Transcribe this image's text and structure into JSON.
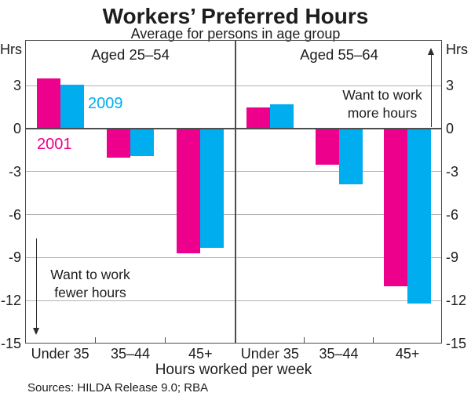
{
  "header": {
    "title": "Workers’ Preferred Hours",
    "subtitle": "Average for persons in age group"
  },
  "chart_data": {
    "type": "bar",
    "unit_label": "Hrs",
    "ylim": [
      -15,
      6.2
    ],
    "yticks": [
      3,
      0,
      -3,
      -6,
      -9,
      -12,
      -15
    ],
    "gridline_values": [
      3,
      -3,
      -6,
      -9,
      -12
    ],
    "categories": [
      "Under 35",
      "35–44",
      "45+"
    ],
    "xlabel": "Hours worked per week",
    "panels": [
      {
        "title": "Aged 25–54",
        "series": [
          {
            "name": "2001",
            "color": "#EC008C",
            "values": [
              3.5,
              -2.0,
              -8.7
            ]
          },
          {
            "name": "2009",
            "color": "#00AEEF",
            "values": [
              3.1,
              -1.9,
              -8.3
            ]
          }
        ]
      },
      {
        "title": "Aged 55–64",
        "series": [
          {
            "name": "2001",
            "color": "#EC008C",
            "values": [
              1.5,
              -2.5,
              -11.0
            ]
          },
          {
            "name": "2009",
            "color": "#00AEEF",
            "values": [
              1.7,
              -3.9,
              -12.2
            ]
          }
        ]
      }
    ],
    "annotations": {
      "fewer": {
        "line1": "Want to work",
        "line2": "fewer hours",
        "direction": "down"
      },
      "more": {
        "line1": "Want to work",
        "line2": "more hours",
        "direction": "up"
      }
    },
    "colors": {
      "grid": "#b3b3b3",
      "axis": "#4d4d4d",
      "text": "#1d1d1b"
    },
    "legend_position": "inside-left-panel",
    "grid": true
  },
  "footer": {
    "sources": "Sources: HILDA Release 9.0; RBA"
  }
}
